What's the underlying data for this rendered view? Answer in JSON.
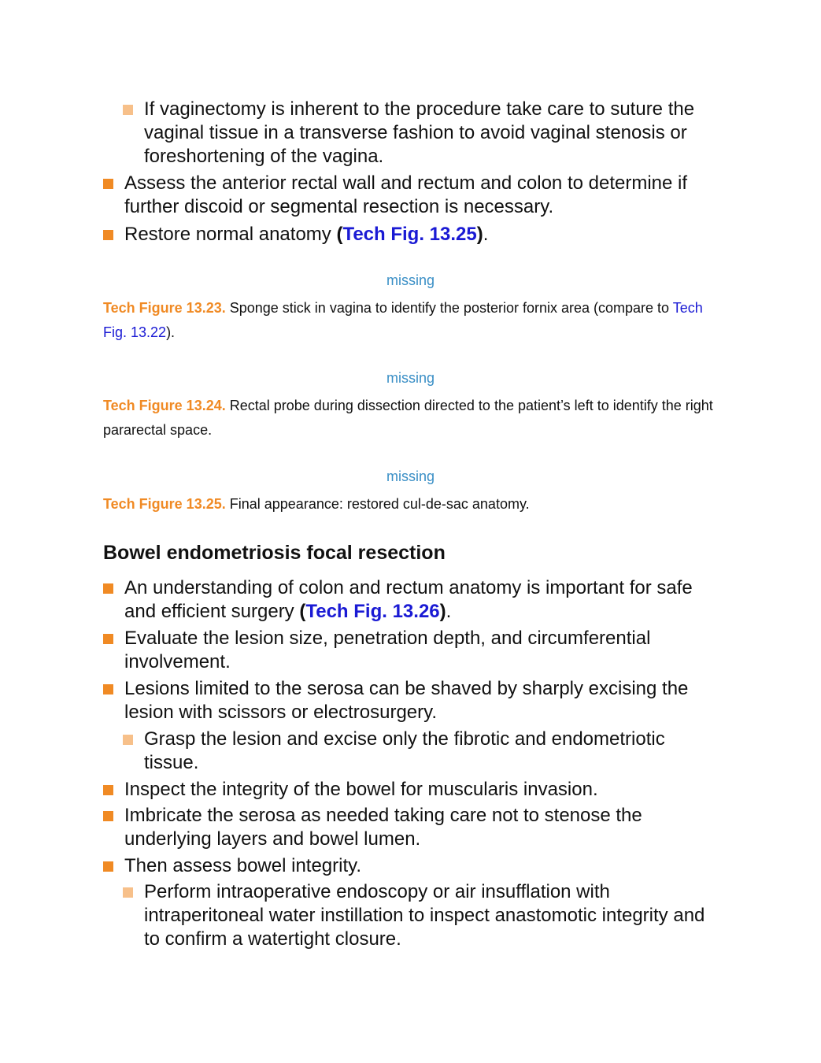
{
  "top_list": [
    {
      "level": 2,
      "text": "If vaginectomy is inherent to the procedure take care to suture the vaginal tissue in a transverse fashion to avoid vaginal stenosis or foreshortening of the vagina."
    },
    {
      "level": 1,
      "text": "Assess the anterior rectal wall and rectum and colon to determine if further discoid or segmental resection is necessary."
    },
    {
      "level": 1,
      "text_before": "Restore normal anatomy ",
      "xref": "Tech Fig. 13.25",
      "text_after": "."
    }
  ],
  "figures": [
    {
      "placeholder": "missing",
      "label": "Tech Figure 13.23.",
      "caption": "Sponge stick in vagina to identify the posterior fornix area (compare to ",
      "link": "Tech Fig. 13.22",
      "caption_end": ")."
    },
    {
      "placeholder": "missing",
      "label": "Tech Figure 13.24.",
      "caption": "Rectal probe during dissection directed to the patient’s left to identify the right pararectal space."
    },
    {
      "placeholder": "missing",
      "label": "Tech Figure 13.25.",
      "caption": "Final appearance: restored cul-de-sac anatomy."
    }
  ],
  "section": {
    "heading": "Bowel endometriosis focal resection",
    "items": [
      {
        "level": 1,
        "text_before": "An understanding of colon and rectum anatomy is important for safe and efficient surgery ",
        "xref": "Tech Fig. 13.26",
        "text_after": "."
      },
      {
        "level": 1,
        "text": "Evaluate the lesion size, penetration depth, and circumferential involvement."
      },
      {
        "level": 1,
        "text": "Lesions limited to the serosa can be shaved by sharply excising the lesion with scissors or electrosurgery."
      },
      {
        "level": 2,
        "text": "Grasp the lesion and excise only the fibrotic and endometriotic tissue."
      },
      {
        "level": 1,
        "text": "Inspect the integrity of the bowel for muscularis invasion."
      },
      {
        "level": 1,
        "text": "Imbricate the serosa as needed taking care not to stenose the underlying layers and bowel lumen."
      },
      {
        "level": 1,
        "text": "Then assess bowel integrity."
      },
      {
        "level": 2,
        "text": "Perform intraoperative endoscopy or air insufflation with intraperitoneal water instillation to inspect anastomotic integrity and to confirm a watertight closure."
      }
    ]
  },
  "colors": {
    "bullet_primary": "#f08a24",
    "bullet_secondary": "#f7c08a",
    "link": "#1a1ad4",
    "figure_label": "#f08a24",
    "placeholder": "#3a8fc6"
  }
}
